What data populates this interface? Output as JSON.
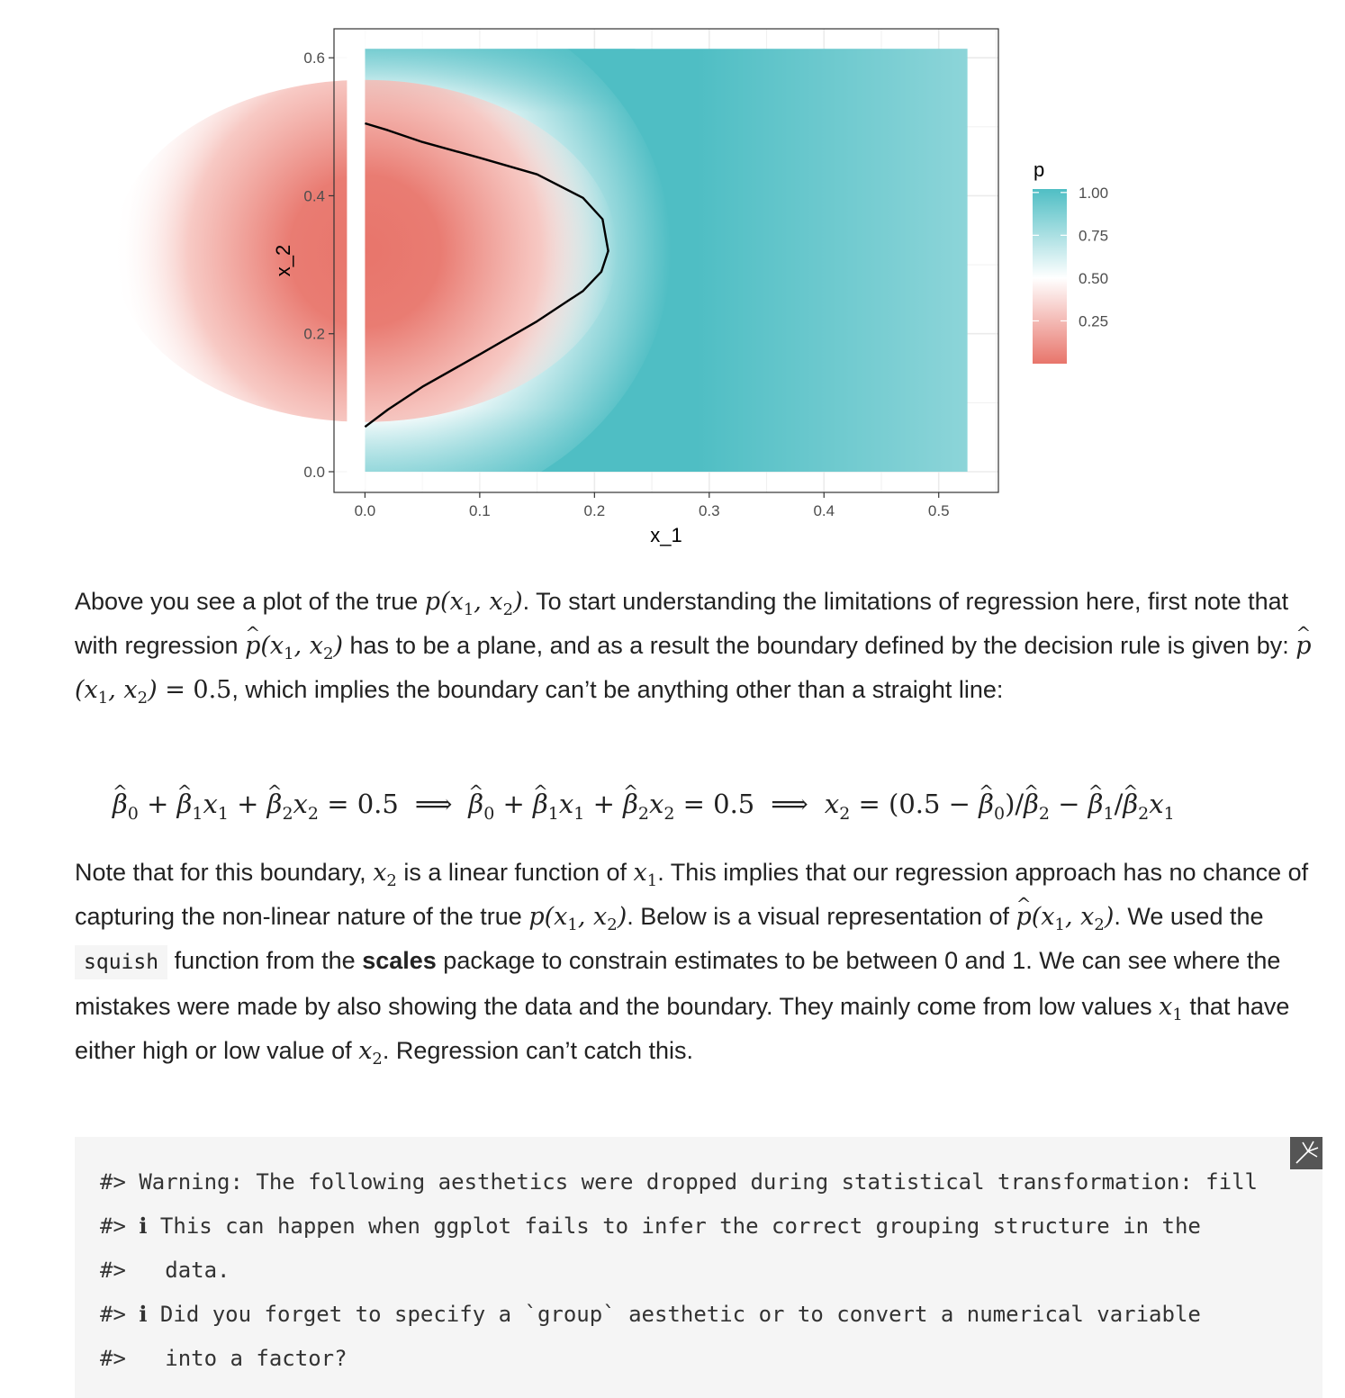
{
  "chart_data": {
    "type": "heatmap",
    "xlabel": "x_1",
    "ylabel": "x_2",
    "xlim": [
      -0.027,
      0.552
    ],
    "ylim": [
      -0.03,
      0.642
    ],
    "x_ticks": [
      "0.0",
      "0.1",
      "0.2",
      "0.3",
      "0.4",
      "0.5"
    ],
    "x_tick_values": [
      0.0,
      0.1,
      0.2,
      0.3,
      0.4,
      0.5
    ],
    "y_ticks": [
      "0.0",
      "0.2",
      "0.4",
      "0.6"
    ],
    "y_tick_values": [
      0.0,
      0.2,
      0.4,
      0.6
    ],
    "data_extent": {
      "x": [
        0.0,
        0.525
      ],
      "y": [
        0.0,
        0.613
      ]
    },
    "fill_variable": "p",
    "fill_scale": {
      "low": "#E8756B",
      "mid": "#FFFFFF",
      "high": "#4FBEC4",
      "midpoint": 0.5
    },
    "legend": {
      "title": "p",
      "labels": [
        "1.00",
        "0.75",
        "0.50",
        "0.25"
      ],
      "values": [
        1.0,
        0.75,
        0.5,
        0.25
      ],
      "range": [
        0.0,
        1.02
      ],
      "placement": "right"
    },
    "contour_level": 0.5,
    "contour": {
      "x": [
        0.0,
        0.02,
        0.05,
        0.1,
        0.15,
        0.19,
        0.207,
        0.212,
        0.206,
        0.19,
        0.15,
        0.1,
        0.05,
        0.02,
        0.0
      ],
      "y": [
        0.505,
        0.495,
        0.478,
        0.455,
        0.431,
        0.397,
        0.366,
        0.32,
        0.29,
        0.262,
        0.218,
        0.17,
        0.123,
        0.09,
        0.065
      ]
    },
    "grid": true
  },
  "text": {
    "p1": {
      "a": "Above you see a plot of the true ",
      "b": ". To start understanding the limitations of regression here, first note that with regression ",
      "c": " has to be a plane, and as a result the boundary defined by the decision rule is given by: ",
      "d": ", which implies the boundary can’t be anything other than a straight line:"
    },
    "p2": {
      "a": "Note that for this boundary, ",
      "b": " is a linear function of ",
      "c": ". This implies that our regression approach has no chance of capturing the non-linear nature of the true ",
      "d": ". Below is a visual representation of ",
      "e": ". We used the ",
      "code": "squish",
      "f": " function from the ",
      "bold": "scales",
      "g": " package to constrain estimates to be between 0 and 1. We can see where the mistakes were made by also showing the data and the boundary. They mainly come from low values ",
      "h": " that have either high or low value of ",
      "i": ". Regression can’t catch this."
    },
    "math": {
      "equals_half": " = 0.5",
      "arrow": "⟹"
    }
  },
  "code_output": {
    "lines": [
      "#> Warning: The following aesthetics were dropped during statistical transformation: fill",
      "#> ℹ This can happen when ggplot fails to infer the correct grouping structure in the",
      "#>   data.",
      "#> ℹ Did you forget to specify a `group` aesthetic or to convert a numerical variable",
      "#>   into a factor?"
    ]
  },
  "icons": {
    "copy": "copy-icon"
  }
}
